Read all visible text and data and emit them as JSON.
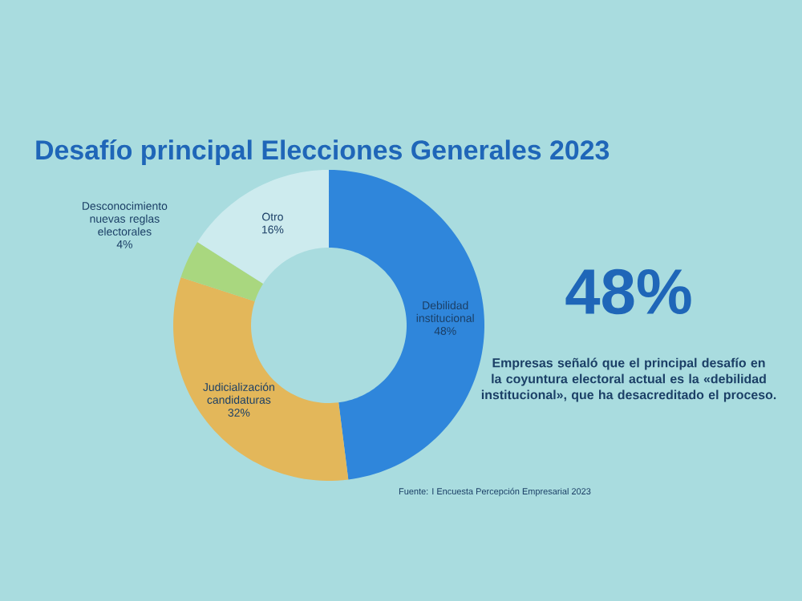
{
  "chart_data": {
    "type": "donut",
    "title": "Desafío principal Elecciones Generales 2023",
    "categories": [
      "Debilidad institucional",
      "Judicialización candidaturas",
      "Desconocimiento nuevas reglas electorales",
      "Otro"
    ],
    "values": [
      48,
      32,
      4,
      16
    ],
    "value_labels": [
      "48%",
      "32%",
      "4%",
      "16%"
    ],
    "colors": [
      "#2f86db",
      "#e3b75a",
      "#a9d77f",
      "#cdebee"
    ],
    "annotations": [
      "48%",
      "Empresas señaló que el principal desafío en la coyuntura electoral actual es la «debilidad institucional», que ha desacreditado el proceso.",
      "Fuente: I Encuesta Percepción Empresarial 2023"
    ]
  }
}
